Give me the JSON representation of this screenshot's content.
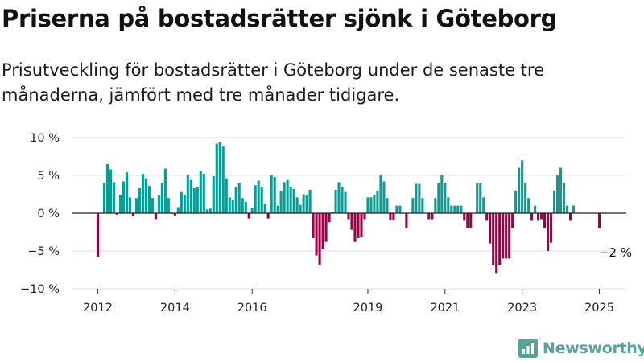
{
  "header": {
    "title": "Priserna på bostadsrätter sjönk i Göteborg",
    "subtitle": "Prisutveckling för bostadsrätter i Göteborg under de senaste tre månaderna, jämfört med tre månader tidigare."
  },
  "colors": {
    "positive": "#0c9c94",
    "negative": "#9b0048",
    "gridline": "#dddddd",
    "zero_line": "#222222",
    "brand": "#5aa394"
  },
  "brand": {
    "name": "Newsworthy",
    "icon": "bar-chart-icon"
  },
  "chart_data": {
    "type": "bar",
    "x_unit": "month",
    "x_start": "2012-01",
    "x_end": "2025-01",
    "ylim": [
      -10,
      10
    ],
    "y_ticks": [
      {
        "value": 10,
        "label": "10 %"
      },
      {
        "value": 5,
        "label": "5 %"
      },
      {
        "value": 0,
        "label": "0 %"
      },
      {
        "value": -5,
        "label": "−5 %"
      },
      {
        "value": -10,
        "label": "−10 %"
      }
    ],
    "x_ticks": [
      {
        "year": 2012,
        "label": "2012"
      },
      {
        "year": 2014,
        "label": "2014"
      },
      {
        "year": 2016,
        "label": "2016"
      },
      {
        "year": 2019,
        "label": "2019"
      },
      {
        "year": 2021,
        "label": "2021"
      },
      {
        "year": 2023,
        "label": "2023"
      },
      {
        "year": 2025,
        "label": "2025"
      }
    ],
    "grid": true,
    "annotation": {
      "label": "−2 %",
      "month": "2025-01",
      "value": -2
    },
    "bars": [
      {
        "month": "2012-01",
        "value": -5.8
      },
      {
        "month": "2012-02",
        "value": 0
      },
      {
        "month": "2012-03",
        "value": 4.0
      },
      {
        "month": "2012-04",
        "value": 6.5
      },
      {
        "month": "2012-05",
        "value": 5.8
      },
      {
        "month": "2012-06",
        "value": 4.1
      },
      {
        "month": "2012-07",
        "value": -0.2
      },
      {
        "month": "2012-08",
        "value": 2.4
      },
      {
        "month": "2012-09",
        "value": 4.2
      },
      {
        "month": "2012-10",
        "value": 5.4
      },
      {
        "month": "2012-11",
        "value": 2.1
      },
      {
        "month": "2012-12",
        "value": -0.4
      },
      {
        "month": "2013-01",
        "value": 2.0
      },
      {
        "month": "2013-02",
        "value": 3.3
      },
      {
        "month": "2013-03",
        "value": 5.2
      },
      {
        "month": "2013-04",
        "value": 4.6
      },
      {
        "month": "2013-05",
        "value": 3.6
      },
      {
        "month": "2013-06",
        "value": 2.0
      },
      {
        "month": "2013-07",
        "value": -0.8
      },
      {
        "month": "2013-08",
        "value": 2.4
      },
      {
        "month": "2013-09",
        "value": 4.0
      },
      {
        "month": "2013-10",
        "value": 5.9
      },
      {
        "month": "2013-11",
        "value": 2.0
      },
      {
        "month": "2013-12",
        "value": -0.1
      },
      {
        "month": "2014-01",
        "value": -0.3
      },
      {
        "month": "2014-02",
        "value": 0.8
      },
      {
        "month": "2014-03",
        "value": 2.8
      },
      {
        "month": "2014-04",
        "value": 2.4
      },
      {
        "month": "2014-05",
        "value": 5.0
      },
      {
        "month": "2014-06",
        "value": 4.4
      },
      {
        "month": "2014-07",
        "value": 3.3
      },
      {
        "month": "2014-08",
        "value": 3.4
      },
      {
        "month": "2014-09",
        "value": 5.6
      },
      {
        "month": "2014-10",
        "value": 5.2
      },
      {
        "month": "2014-11",
        "value": 0.5
      },
      {
        "month": "2014-12",
        "value": 0.6
      },
      {
        "month": "2015-01",
        "value": 4.9
      },
      {
        "month": "2015-02",
        "value": 9.2
      },
      {
        "month": "2015-03",
        "value": 9.4
      },
      {
        "month": "2015-04",
        "value": 8.8
      },
      {
        "month": "2015-05",
        "value": 4.6
      },
      {
        "month": "2015-06",
        "value": 2.1
      },
      {
        "month": "2015-07",
        "value": 1.8
      },
      {
        "month": "2015-08",
        "value": 3.4
      },
      {
        "month": "2015-09",
        "value": 4.0
      },
      {
        "month": "2015-10",
        "value": 2.0
      },
      {
        "month": "2015-11",
        "value": 1.5
      },
      {
        "month": "2015-12",
        "value": -0.7
      },
      {
        "month": "2016-01",
        "value": 0.7
      },
      {
        "month": "2016-02",
        "value": 3.7
      },
      {
        "month": "2016-03",
        "value": 4.3
      },
      {
        "month": "2016-04",
        "value": 3.4
      },
      {
        "month": "2016-05",
        "value": 1.2
      },
      {
        "month": "2016-06",
        "value": -0.7
      },
      {
        "month": "2016-07",
        "value": 5.0
      },
      {
        "month": "2016-08",
        "value": 4.8
      },
      {
        "month": "2016-09",
        "value": 1.0
      },
      {
        "month": "2016-10",
        "value": 2.9
      },
      {
        "month": "2016-11",
        "value": 4.1
      },
      {
        "month": "2016-12",
        "value": 4.4
      },
      {
        "month": "2017-01",
        "value": 3.5
      },
      {
        "month": "2017-02",
        "value": 3.2
      },
      {
        "month": "2017-03",
        "value": 2.1
      },
      {
        "month": "2017-04",
        "value": 1.1
      },
      {
        "month": "2017-05",
        "value": 2.5
      },
      {
        "month": "2017-06",
        "value": 2.4
      },
      {
        "month": "2017-07",
        "value": 3.1
      },
      {
        "month": "2017-08",
        "value": -3.3
      },
      {
        "month": "2017-09",
        "value": -5.6
      },
      {
        "month": "2017-10",
        "value": -6.8
      },
      {
        "month": "2017-11",
        "value": -4.7
      },
      {
        "month": "2017-12",
        "value": -3.8
      },
      {
        "month": "2018-01",
        "value": -1.2
      },
      {
        "month": "2018-02",
        "value": 0.2
      },
      {
        "month": "2018-03",
        "value": 3.1
      },
      {
        "month": "2018-04",
        "value": 4.1
      },
      {
        "month": "2018-05",
        "value": 3.5
      },
      {
        "month": "2018-06",
        "value": 2.8
      },
      {
        "month": "2018-07",
        "value": -0.8
      },
      {
        "month": "2018-08",
        "value": -2.2
      },
      {
        "month": "2018-09",
        "value": -3.8
      },
      {
        "month": "2018-10",
        "value": -3.3
      },
      {
        "month": "2018-11",
        "value": -3.2
      },
      {
        "month": "2018-12",
        "value": -0.8
      },
      {
        "month": "2019-01",
        "value": 2.1
      },
      {
        "month": "2019-02",
        "value": 2.1
      },
      {
        "month": "2019-03",
        "value": 2.4
      },
      {
        "month": "2019-04",
        "value": 3.0
      },
      {
        "month": "2019-05",
        "value": 5.0
      },
      {
        "month": "2019-06",
        "value": 4.2
      },
      {
        "month": "2019-07",
        "value": 2.0
      },
      {
        "month": "2019-08",
        "value": -0.9
      },
      {
        "month": "2019-09",
        "value": -0.9
      },
      {
        "month": "2019-10",
        "value": 1.0
      },
      {
        "month": "2019-11",
        "value": 1.0
      },
      {
        "month": "2019-12",
        "value": 0
      },
      {
        "month": "2020-01",
        "value": -2.0
      },
      {
        "month": "2020-02",
        "value": 0
      },
      {
        "month": "2020-03",
        "value": 2.0
      },
      {
        "month": "2020-04",
        "value": 3.9
      },
      {
        "month": "2020-05",
        "value": 3.9
      },
      {
        "month": "2020-06",
        "value": 2.0
      },
      {
        "month": "2020-07",
        "value": 0
      },
      {
        "month": "2020-08",
        "value": -0.8
      },
      {
        "month": "2020-09",
        "value": -0.8
      },
      {
        "month": "2020-10",
        "value": 2.0
      },
      {
        "month": "2020-11",
        "value": 4.0
      },
      {
        "month": "2020-12",
        "value": 5.0
      },
      {
        "month": "2021-01",
        "value": 4.0
      },
      {
        "month": "2021-02",
        "value": 2.1
      },
      {
        "month": "2021-03",
        "value": 1.0
      },
      {
        "month": "2021-04",
        "value": 1.0
      },
      {
        "month": "2021-05",
        "value": 1.0
      },
      {
        "month": "2021-06",
        "value": 1.0
      },
      {
        "month": "2021-07",
        "value": -1.0
      },
      {
        "month": "2021-08",
        "value": -2.0
      },
      {
        "month": "2021-09",
        "value": -2.0
      },
      {
        "month": "2021-10",
        "value": 0
      },
      {
        "month": "2021-11",
        "value": 4.0
      },
      {
        "month": "2021-12",
        "value": 4.0
      },
      {
        "month": "2022-01",
        "value": 2.1
      },
      {
        "month": "2022-02",
        "value": -1.0
      },
      {
        "month": "2022-03",
        "value": -4.0
      },
      {
        "month": "2022-04",
        "value": -6.9
      },
      {
        "month": "2022-05",
        "value": -7.9
      },
      {
        "month": "2022-06",
        "value": -6.9
      },
      {
        "month": "2022-07",
        "value": -6.0
      },
      {
        "month": "2022-08",
        "value": -6.0
      },
      {
        "month": "2022-09",
        "value": -6.0
      },
      {
        "month": "2022-10",
        "value": -2.0
      },
      {
        "month": "2022-11",
        "value": 3.0
      },
      {
        "month": "2022-12",
        "value": 6.0
      },
      {
        "month": "2023-01",
        "value": 7.0
      },
      {
        "month": "2023-02",
        "value": 4.0
      },
      {
        "month": "2023-03",
        "value": 2.0
      },
      {
        "month": "2023-04",
        "value": -1.0
      },
      {
        "month": "2023-05",
        "value": 1.0
      },
      {
        "month": "2023-06",
        "value": -1.0
      },
      {
        "month": "2023-07",
        "value": -0.8
      },
      {
        "month": "2023-08",
        "value": -2.0
      },
      {
        "month": "2023-09",
        "value": -5.0
      },
      {
        "month": "2023-10",
        "value": -3.9
      },
      {
        "month": "2023-11",
        "value": 3.0
      },
      {
        "month": "2023-12",
        "value": 5.0
      },
      {
        "month": "2024-01",
        "value": 6.0
      },
      {
        "month": "2024-02",
        "value": 4.0
      },
      {
        "month": "2024-03",
        "value": 1.0
      },
      {
        "month": "2024-04",
        "value": -1.0
      },
      {
        "month": "2024-05",
        "value": 1.0
      },
      {
        "month": "2024-06",
        "value": 0
      },
      {
        "month": "2024-07",
        "value": 0
      },
      {
        "month": "2024-08",
        "value": 0
      },
      {
        "month": "2024-09",
        "value": 0
      },
      {
        "month": "2024-10",
        "value": 0
      },
      {
        "month": "2024-11",
        "value": 0
      },
      {
        "month": "2024-12",
        "value": 0
      },
      {
        "month": "2025-01",
        "value": -2.0
      }
    ]
  }
}
